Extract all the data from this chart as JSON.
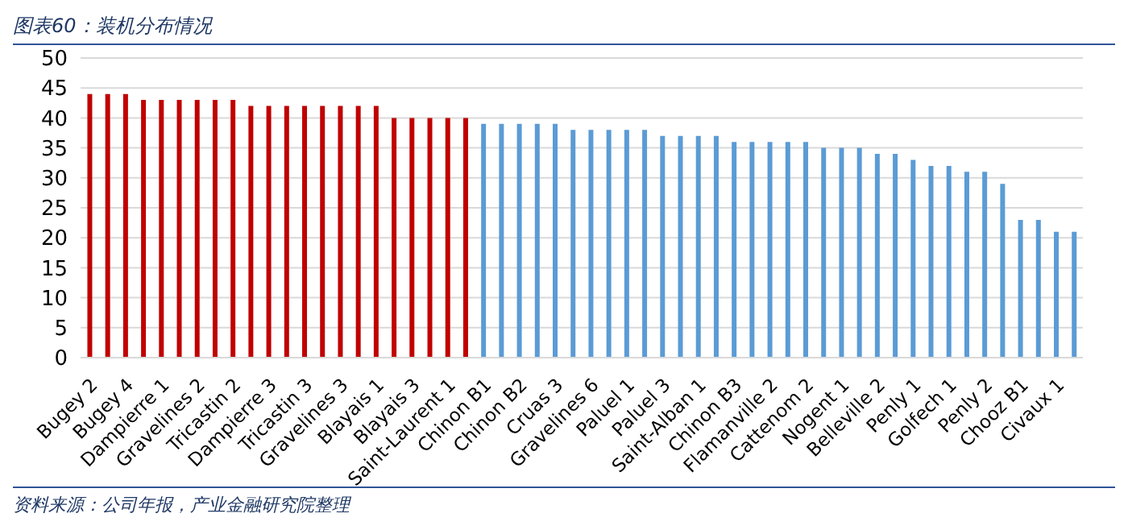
{
  "chart_data": {
    "type": "bar",
    "title": "图表60：装机分布情况",
    "annotations": [
      "资料来源：公司年报，产业金融研究院整理"
    ],
    "categories": [
      "Bugey 2",
      null,
      "Bugey 4",
      null,
      "Dampierre 1",
      null,
      "Gravelines 2",
      null,
      "Tricastin 2",
      null,
      "Dampierre 3",
      null,
      "Tricastin 3",
      null,
      "Gravelines 3",
      null,
      "Blayais 1",
      null,
      "Blayais 3",
      null,
      "Saint-Laurent 1",
      null,
      "Chinon B1",
      null,
      "Chinon B2",
      null,
      "Cruas 3",
      null,
      "Gravelines 6",
      null,
      "Paluel 1",
      null,
      "Paluel 3",
      null,
      "Saint-Alban 1",
      null,
      "Chinon B3",
      null,
      "Flamanville 2",
      null,
      "Cattenom 2",
      null,
      "Nogent 1",
      null,
      "Belleville 2",
      null,
      "Penly 1",
      null,
      "Golfech 1",
      null,
      "Penly 2",
      null,
      "Chooz B1",
      null,
      "Civaux 1",
      null
    ],
    "values": [
      44,
      44,
      44,
      43,
      43,
      43,
      43,
      43,
      43,
      42,
      42,
      42,
      42,
      42,
      42,
      42,
      42,
      40,
      40,
      40,
      40,
      40,
      39,
      39,
      39,
      39,
      39,
      38,
      38,
      38,
      38,
      38,
      37,
      37,
      37,
      37,
      36,
      36,
      36,
      36,
      36,
      35,
      35,
      35,
      34,
      34,
      33,
      32,
      32,
      31,
      31,
      29,
      23,
      23,
      21,
      21
    ],
    "colors": [
      "#c00000",
      "#c00000",
      "#c00000",
      "#c00000",
      "#c00000",
      "#c00000",
      "#c00000",
      "#c00000",
      "#c00000",
      "#c00000",
      "#c00000",
      "#c00000",
      "#c00000",
      "#c00000",
      "#c00000",
      "#c00000",
      "#c00000",
      "#c00000",
      "#c00000",
      "#c00000",
      "#c00000",
      "#c00000",
      "#5b9bd5",
      "#5b9bd5",
      "#5b9bd5",
      "#5b9bd5",
      "#5b9bd5",
      "#5b9bd5",
      "#5b9bd5",
      "#5b9bd5",
      "#5b9bd5",
      "#5b9bd5",
      "#5b9bd5",
      "#5b9bd5",
      "#5b9bd5",
      "#5b9bd5",
      "#5b9bd5",
      "#5b9bd5",
      "#5b9bd5",
      "#5b9bd5",
      "#5b9bd5",
      "#5b9bd5",
      "#5b9bd5",
      "#5b9bd5",
      "#5b9bd5",
      "#5b9bd5",
      "#5b9bd5",
      "#5b9bd5",
      "#5b9bd5",
      "#5b9bd5",
      "#5b9bd5",
      "#5b9bd5",
      "#5b9bd5",
      "#5b9bd5",
      "#5b9bd5",
      "#5b9bd5"
    ],
    "ylim": [
      0,
      50
    ],
    "yticks": [
      0,
      5,
      10,
      15,
      20,
      25,
      30,
      35,
      40,
      45,
      50
    ],
    "grid": "y",
    "legend": false
  }
}
